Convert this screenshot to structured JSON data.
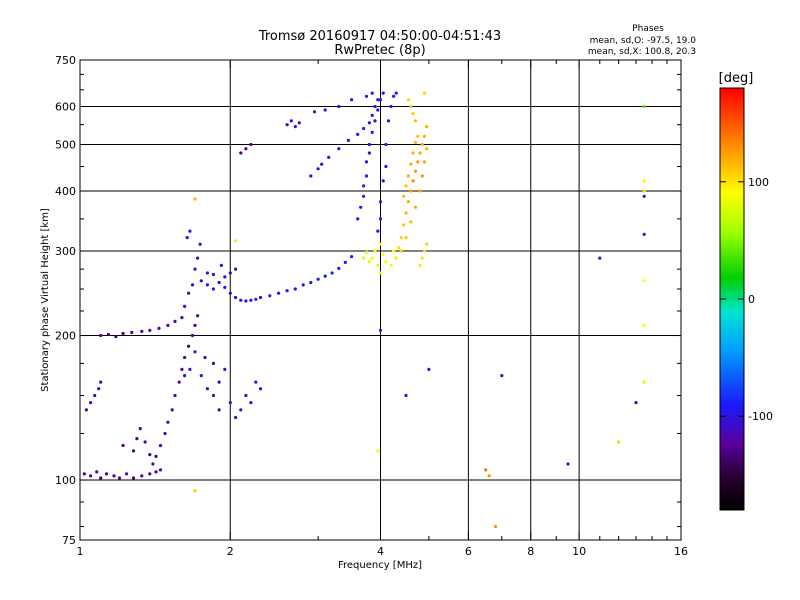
{
  "chart_data": {
    "type": "scatter",
    "title": "Tromsø 20160917 04:50:00-04:51:43",
    "subtitle": "RwPretec (8p)",
    "xlabel": "Frequency [MHz]",
    "ylabel": "Stationary phase Virtual Height [km]",
    "x_scale": "log",
    "y_scale": "log",
    "xlim": [
      1,
      16
    ],
    "ylim": [
      75,
      750
    ],
    "grid": true,
    "x_ticks": [
      1,
      2,
      4,
      6,
      8,
      10,
      16
    ],
    "x_tick_labels": [
      "1",
      "2",
      "4",
      "6",
      "8",
      "10",
      "16"
    ],
    "x_minor_ticks": [
      3,
      5,
      7,
      9,
      11,
      12,
      13,
      14,
      15
    ],
    "y_ticks": [
      75,
      100,
      200,
      300,
      400,
      500,
      600,
      750
    ],
    "y_tick_labels": [
      "75",
      "100",
      "200",
      "300",
      "400",
      "500",
      "600",
      "750"
    ],
    "y_minor_ticks": [
      80,
      90,
      125,
      150,
      175,
      225,
      250,
      275,
      350,
      450,
      550,
      650,
      700
    ],
    "phases_info": {
      "title": "Phases",
      "line1": "mean, sd,O: -97.5, 19.0",
      "line2": "mean, sd,X: 100.8, 20.3"
    },
    "colorbar": {
      "label": "[deg]",
      "min": -180,
      "max": 180,
      "ticks": [
        100,
        0,
        -100
      ],
      "tick_labels": [
        "100",
        "0",
        "-100"
      ]
    },
    "series": [
      {
        "points": [
          [
            1.02,
            103,
            -120
          ],
          [
            1.05,
            102,
            -125
          ],
          [
            1.08,
            104,
            -118
          ],
          [
            1.1,
            101,
            -130
          ],
          [
            1.13,
            103,
            -122
          ],
          [
            1.17,
            102,
            -126
          ],
          [
            1.2,
            101,
            -128
          ],
          [
            1.24,
            103,
            -120
          ],
          [
            1.28,
            101,
            -130
          ],
          [
            1.33,
            102,
            -124
          ],
          [
            1.38,
            103,
            -118
          ],
          [
            1.42,
            104,
            -121
          ],
          [
            1.45,
            105,
            -117
          ],
          [
            1.4,
            108,
            -125
          ],
          [
            1.42,
            112,
            -128
          ],
          [
            1.45,
            118,
            -130
          ],
          [
            1.48,
            125,
            -126
          ],
          [
            1.5,
            132,
            -122
          ],
          [
            1.53,
            140,
            -125
          ],
          [
            1.55,
            150,
            -120
          ],
          [
            1.58,
            160,
            -118
          ],
          [
            1.6,
            170,
            -122
          ],
          [
            1.62,
            180,
            -125
          ],
          [
            1.65,
            190,
            -130
          ],
          [
            1.68,
            200,
            -128
          ],
          [
            1.7,
            210,
            -126
          ],
          [
            1.72,
            220,
            -124
          ],
          [
            1.22,
            118,
            -130
          ],
          [
            1.28,
            115,
            -128
          ],
          [
            1.3,
            122,
            -126
          ],
          [
            1.35,
            120,
            -124
          ],
          [
            1.38,
            113,
            -129
          ],
          [
            1.32,
            128,
            -127
          ],
          [
            1.05,
            145,
            -110
          ],
          [
            1.07,
            150,
            -112
          ],
          [
            1.09,
            155,
            -108
          ],
          [
            1.1,
            160,
            -110
          ],
          [
            1.03,
            140,
            -115
          ],
          [
            1.1,
            200,
            -130
          ],
          [
            1.14,
            201,
            -128
          ],
          [
            1.18,
            199,
            -132
          ],
          [
            1.22,
            202,
            -130
          ],
          [
            1.27,
            203,
            -128
          ],
          [
            1.33,
            204,
            -126
          ],
          [
            1.38,
            205,
            -124
          ],
          [
            1.44,
            207,
            -122
          ],
          [
            1.5,
            210,
            -120
          ],
          [
            1.55,
            214,
            -118
          ],
          [
            1.6,
            218,
            -125
          ],
          [
            1.62,
            230,
            -110
          ],
          [
            1.65,
            245,
            -115
          ],
          [
            1.68,
            255,
            -112
          ],
          [
            1.7,
            275,
            -110
          ],
          [
            1.72,
            290,
            -108
          ],
          [
            1.74,
            310,
            -112
          ],
          [
            1.66,
            330,
            -105
          ],
          [
            1.64,
            320,
            -110
          ],
          [
            1.75,
            165,
            -110
          ],
          [
            1.8,
            155,
            -112
          ],
          [
            1.85,
            150,
            -115
          ],
          [
            1.9,
            160,
            -108
          ],
          [
            1.95,
            170,
            -105
          ],
          [
            2.0,
            145,
            -110
          ],
          [
            2.05,
            135,
            -112
          ],
          [
            2.1,
            140,
            -108
          ],
          [
            2.15,
            150,
            -105
          ],
          [
            2.2,
            145,
            -100
          ],
          [
            1.85,
            175,
            -118
          ],
          [
            1.9,
            140,
            -116
          ],
          [
            1.78,
            180,
            -120
          ],
          [
            2.25,
            160,
            -98
          ],
          [
            2.3,
            155,
            -96
          ],
          [
            1.75,
            260,
            -100
          ],
          [
            1.8,
            255,
            -98
          ],
          [
            1.85,
            250,
            -102
          ],
          [
            1.9,
            258,
            -100
          ],
          [
            1.95,
            252,
            -96
          ],
          [
            2.0,
            245,
            -98
          ],
          [
            2.05,
            240,
            -100
          ],
          [
            2.1,
            237,
            -102
          ],
          [
            2.15,
            236,
            -100
          ],
          [
            2.2,
            237,
            -95
          ],
          [
            2.25,
            238,
            -98
          ],
          [
            2.3,
            240,
            -96
          ],
          [
            2.4,
            242,
            -94
          ],
          [
            2.5,
            245,
            -92
          ],
          [
            2.6,
            248,
            -90
          ],
          [
            2.7,
            250,
            -95
          ],
          [
            2.8,
            255,
            -93
          ],
          [
            2.9,
            258,
            -90
          ],
          [
            3.0,
            262,
            -92
          ],
          [
            3.1,
            266,
            -90
          ],
          [
            3.2,
            270,
            -88
          ],
          [
            3.3,
            276,
            -90
          ],
          [
            3.4,
            284,
            -92
          ],
          [
            3.5,
            292,
            -95
          ],
          [
            1.8,
            270,
            -110
          ],
          [
            1.85,
            268,
            -108
          ],
          [
            1.95,
            265,
            -112
          ],
          [
            2.0,
            270,
            -110
          ],
          [
            2.05,
            275,
            -115
          ],
          [
            1.92,
            280,
            -118
          ],
          [
            2.9,
            430,
            -105
          ],
          [
            3.0,
            445,
            -100
          ],
          [
            3.05,
            455,
            -102
          ],
          [
            3.15,
            470,
            -98
          ],
          [
            3.3,
            490,
            -100
          ],
          [
            3.45,
            510,
            -98
          ],
          [
            3.6,
            525,
            -96
          ],
          [
            3.7,
            540,
            -100
          ],
          [
            3.8,
            555,
            -95
          ],
          [
            3.85,
            575,
            -98
          ],
          [
            3.9,
            600,
            -100
          ],
          [
            3.95,
            620,
            -96
          ],
          [
            3.6,
            350,
            -100
          ],
          [
            3.65,
            370,
            -98
          ],
          [
            3.7,
            390,
            -102
          ],
          [
            3.7,
            410,
            -96
          ],
          [
            3.75,
            430,
            -100
          ],
          [
            3.75,
            460,
            -98
          ],
          [
            3.8,
            480,
            -100
          ],
          [
            3.8,
            500,
            -96
          ],
          [
            3.85,
            530,
            -95
          ],
          [
            3.9,
            560,
            -98
          ],
          [
            3.95,
            590,
            -100
          ],
          [
            4.0,
            620,
            -96
          ],
          [
            4.05,
            640,
            -94
          ],
          [
            3.95,
            330,
            -98
          ],
          [
            4.0,
            350,
            -96
          ],
          [
            4.0,
            380,
            -100
          ],
          [
            4.05,
            420,
            -98
          ],
          [
            4.1,
            450,
            -95
          ],
          [
            4.1,
            500,
            -96
          ],
          [
            4.15,
            560,
            -98
          ],
          [
            4.2,
            600,
            -94
          ],
          [
            4.25,
            630,
            -96
          ],
          [
            4.3,
            640,
            -95
          ],
          [
            3.85,
            640,
            -100
          ],
          [
            3.75,
            630,
            -102
          ],
          [
            3.5,
            620,
            -104
          ],
          [
            3.3,
            600,
            -106
          ],
          [
            3.1,
            590,
            -110
          ],
          [
            2.95,
            585,
            -108
          ],
          [
            2.6,
            550,
            -110
          ],
          [
            2.65,
            560,
            -108
          ],
          [
            2.7,
            545,
            -112
          ],
          [
            2.75,
            555,
            -110
          ],
          [
            2.15,
            490,
            -125
          ],
          [
            2.2,
            500,
            -123
          ],
          [
            2.1,
            480,
            -127
          ],
          [
            1.62,
            165,
            -100
          ],
          [
            1.66,
            170,
            -102
          ],
          [
            1.7,
            185,
            -98
          ],
          [
            9.5,
            108,
            -110
          ],
          [
            7.0,
            165,
            -110
          ],
          [
            13.0,
            145,
            -105
          ],
          [
            13.5,
            390,
            -112
          ],
          [
            13.5,
            325,
            -110
          ],
          [
            11.0,
            290,
            -115
          ],
          [
            4.0,
            205,
            -100
          ],
          [
            5.0,
            170,
            -105
          ],
          [
            4.5,
            150,
            -102
          ]
        ]
      },
      {
        "points": [
          [
            4.3,
            290,
            95
          ],
          [
            4.35,
            305,
            100
          ],
          [
            4.4,
            320,
            105
          ],
          [
            4.45,
            340,
            110
          ],
          [
            4.5,
            360,
            115
          ],
          [
            4.55,
            380,
            120
          ],
          [
            4.6,
            400,
            125
          ],
          [
            4.65,
            420,
            130
          ],
          [
            4.7,
            440,
            128
          ],
          [
            4.75,
            460,
            125
          ],
          [
            4.8,
            480,
            122
          ],
          [
            4.85,
            500,
            120
          ],
          [
            4.9,
            520,
            118
          ],
          [
            4.95,
            545,
            120
          ],
          [
            4.7,
            560,
            115
          ],
          [
            4.65,
            580,
            110
          ],
          [
            4.6,
            600,
            108
          ],
          [
            4.55,
            620,
            105
          ],
          [
            4.4,
            300,
            108
          ],
          [
            4.5,
            320,
            110
          ],
          [
            4.6,
            345,
            115
          ],
          [
            4.7,
            370,
            120
          ],
          [
            4.8,
            400,
            125
          ],
          [
            4.85,
            430,
            128
          ],
          [
            4.9,
            460,
            122
          ],
          [
            4.95,
            490,
            118
          ],
          [
            4.5,
            410,
            112
          ],
          [
            4.45,
            390,
            115
          ],
          [
            4.55,
            430,
            118
          ],
          [
            4.6,
            455,
            120
          ],
          [
            4.65,
            480,
            118
          ],
          [
            4.7,
            505,
            116
          ],
          [
            4.75,
            520,
            114
          ],
          [
            4.0,
            310,
            90
          ],
          [
            4.05,
            295,
            92
          ],
          [
            4.1,
            285,
            88
          ],
          [
            4.2,
            280,
            85
          ],
          [
            4.25,
            300,
            90
          ],
          [
            3.9,
            300,
            85
          ],
          [
            3.85,
            290,
            82
          ],
          [
            3.95,
            280,
            84
          ],
          [
            4.0,
            270,
            82
          ],
          [
            3.8,
            285,
            85
          ],
          [
            3.75,
            298,
            83
          ],
          [
            3.7,
            290,
            82
          ],
          [
            4.85,
            290,
            100
          ],
          [
            4.9,
            300,
            102
          ],
          [
            4.95,
            310,
            105
          ],
          [
            4.8,
            280,
            98
          ],
          [
            6.5,
            105,
            140
          ],
          [
            6.6,
            102,
            130
          ],
          [
            13.5,
            400,
            100
          ],
          [
            13.5,
            420,
            95
          ],
          [
            13.5,
            260,
            90
          ],
          [
            13.5,
            210,
            85
          ],
          [
            13.5,
            160,
            80
          ],
          [
            12.0,
            120,
            60
          ],
          [
            13.5,
            600,
            40
          ],
          [
            1.7,
            95,
            110
          ],
          [
            1.7,
            385,
            115
          ],
          [
            3.95,
            115,
            92
          ],
          [
            2.05,
            315,
            75
          ],
          [
            4.9,
            640,
            105
          ],
          [
            6.8,
            80,
            130
          ]
        ]
      }
    ]
  }
}
